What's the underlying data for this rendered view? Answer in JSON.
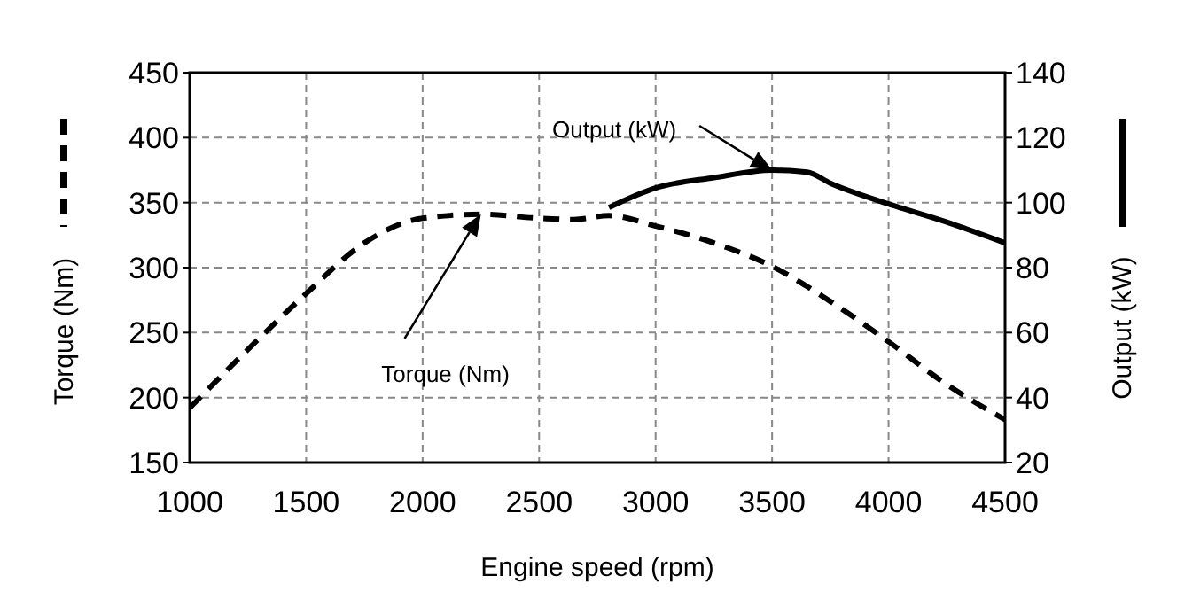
{
  "chart_data": {
    "type": "line",
    "xlabel": "Engine speed (rpm)",
    "ylabel": "Torque (Nm)",
    "y2label": "Output (kW)",
    "xlim": [
      1000,
      4500
    ],
    "xticks": [
      1000,
      1500,
      2000,
      2500,
      3000,
      3500,
      4000,
      4500
    ],
    "ylim": [
      150,
      450
    ],
    "yticks": [
      150,
      200,
      250,
      300,
      350,
      400,
      450
    ],
    "y2lim": [
      20,
      140
    ],
    "y2ticks": [
      20,
      40,
      60,
      80,
      100,
      120,
      140
    ],
    "grid": true,
    "series": [
      {
        "color": "#000000",
        "line_style": "dashed",
        "x": [
          1000,
          1250,
          1500,
          1750,
          2000,
          2250,
          2500,
          2650,
          2800,
          3000,
          3250,
          3500,
          3750,
          4000,
          4250,
          4500
        ],
        "values": [
          192,
          237,
          280,
          319,
          338,
          341,
          338,
          337,
          340,
          332,
          319,
          301,
          274,
          243,
          210,
          183
        ]
      },
      {
        "color": "#000000",
        "line_style": "solid",
        "axis": "y2",
        "x": [
          2800,
          3000,
          3250,
          3500,
          3650,
          3750,
          4000,
          4250,
          4500
        ],
        "values": [
          98.5,
          104.5,
          107.7,
          110,
          109.4,
          106,
          99.6,
          94,
          87.6
        ]
      }
    ],
    "annotations": [
      "Output (kW)",
      "Torque (Nm)"
    ]
  }
}
